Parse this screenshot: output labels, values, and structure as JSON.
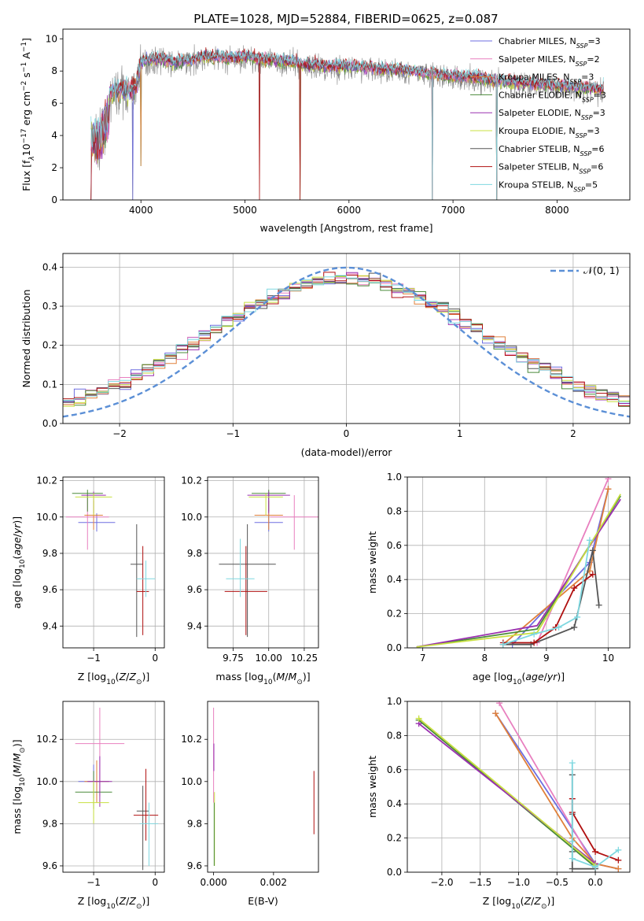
{
  "figure": {
    "title": "PLATE=1028, MJD=52884, FIBERID=0625, z=0.087"
  },
  "colors": {
    "chabrier_miles": "#6e6ee0",
    "salpeter_miles": "#e87fbf",
    "kroupa_miles": "#e0803a",
    "chabrier_elodie": "#4a8a3a",
    "salpeter_elodie": "#9a30b0",
    "kroupa_elodie": "#c8e040",
    "chabrier_stelib": "#555555",
    "salpeter_stelib": "#b01010",
    "kroupa_stelib": "#7fd8e0",
    "data": "#808080",
    "normal": "#5b8fd6",
    "grid": "#b0b0b0"
  },
  "legend_spectrum": [
    {
      "text": "Chabrier MILES, N",
      "sub": "SSP",
      "tail": "=3",
      "color_key": "chabrier_miles"
    },
    {
      "text": "Salpeter MILES, N",
      "sub": "SSP",
      "tail": "=2",
      "color_key": "salpeter_miles"
    },
    {
      "text": "Kroupa MILES, N",
      "sub": "SSP",
      "tail": "=3",
      "color_key": "kroupa_miles"
    },
    {
      "text": "Chabrier ELODIE, N",
      "sub": "SSP",
      "tail": "=3",
      "color_key": "chabrier_elodie"
    },
    {
      "text": "Salpeter ELODIE, N",
      "sub": "SSP",
      "tail": "=3",
      "color_key": "salpeter_elodie"
    },
    {
      "text": "Kroupa ELODIE, N",
      "sub": "SSP",
      "tail": "=3",
      "color_key": "kroupa_elodie"
    },
    {
      "text": "Chabrier STELIB, N",
      "sub": "SSP",
      "tail": "=6",
      "color_key": "chabrier_stelib"
    },
    {
      "text": "Salpeter STELIB, N",
      "sub": "SSP",
      "tail": "=6",
      "color_key": "salpeter_stelib"
    },
    {
      "text": "Kroupa STELIB, N",
      "sub": "SSP",
      "tail": "=5",
      "color_key": "kroupa_stelib"
    }
  ],
  "chart_data": [
    {
      "id": "spectrum",
      "type": "line",
      "xlabel": "wavelength [Angstrom, rest frame]",
      "ylabel": "Flux [fλ10⁻¹⁷ erg cm⁻² s⁻¹ A⁻¹]",
      "xlim": [
        3250,
        8700
      ],
      "ylim": [
        0,
        10.6
      ],
      "xticks": [
        4000,
        5000,
        6000,
        7000,
        8000
      ],
      "yticks": [
        0,
        2,
        4,
        6,
        8,
        10
      ],
      "grid": false,
      "legend": "right",
      "envelope": {
        "x": [
          3520,
          3600,
          3700,
          3800,
          3900,
          3950,
          4000,
          4100,
          4200,
          4300,
          4400,
          4500,
          4600,
          4800,
          5000,
          5200,
          5400,
          5600,
          5800,
          6000,
          6200,
          6400,
          6600,
          6800,
          7000,
          7200,
          7400,
          7600,
          7800,
          8000,
          8200,
          8450
        ],
        "y": [
          5.0,
          4.9,
          6.6,
          6.9,
          6.7,
          7.0,
          8.6,
          8.7,
          8.8,
          8.5,
          8.6,
          8.7,
          8.9,
          8.8,
          8.9,
          8.7,
          8.6,
          8.4,
          8.3,
          8.3,
          8.2,
          8.1,
          8.0,
          7.8,
          7.7,
          7.6,
          7.4,
          7.3,
          7.2,
          7.1,
          7.0,
          6.9
        ]
      },
      "deep_drops": [
        {
          "x": 3520,
          "y": 0.0
        },
        {
          "x": 3920,
          "y": 0.0
        },
        {
          "x": 4000,
          "y": 2.1
        },
        {
          "x": 5140,
          "y": 0.0
        },
        {
          "x": 5530,
          "y": 0.0
        },
        {
          "x": 6800,
          "y": 0.0
        },
        {
          "x": 7420,
          "y": 0.0
        }
      ]
    },
    {
      "id": "residuals",
      "type": "histogram",
      "xlabel": "(data-model)/error",
      "ylabel": "Normed distribution",
      "xlim": [
        -2.5,
        2.5
      ],
      "ylim": [
        0,
        0.435
      ],
      "xticks": [
        -2,
        -1,
        0,
        1,
        2
      ],
      "yticks": [
        0.0,
        0.1,
        0.2,
        0.3,
        0.4
      ],
      "grid": true,
      "legend_label": "𝒩(0, 1)",
      "legend": "top-right",
      "bin_width": 0.1
    },
    {
      "id": "age_vs_Z",
      "type": "errorbar",
      "xlabel": "Z [log₁₀(Z/Z⊙)]",
      "ylabel": "age  [log₁₀(age/yr)]",
      "xlim": [
        -1.5,
        0.15
      ],
      "ylim": [
        9.28,
        10.22
      ],
      "xticks": [
        -1,
        0
      ],
      "yticks": [
        9.4,
        9.6,
        9.8,
        10.0,
        10.2
      ],
      "grid": true,
      "points": [
        {
          "k": "chabrier_miles",
          "x": -0.95,
          "y": 9.97,
          "xe": [
            0.3,
            0.3
          ],
          "ye": [
            0.05,
            0.05
          ]
        },
        {
          "k": "salpeter_miles",
          "x": -1.1,
          "y": 10.0,
          "xe": [
            0.35,
            0.35
          ],
          "ye": [
            0.18,
            0.12
          ]
        },
        {
          "k": "kroupa_miles",
          "x": -1.0,
          "y": 10.01,
          "xe": [
            0.15,
            0.15
          ],
          "ye": [
            0.08,
            0.08
          ]
        },
        {
          "k": "chabrier_elodie",
          "x": -1.1,
          "y": 10.13,
          "xe": [
            0.25,
            0.25
          ],
          "ye": [
            0.1,
            0.02
          ]
        },
        {
          "k": "salpeter_elodie",
          "x": -1.0,
          "y": 10.12,
          "xe": [
            0.2,
            0.2
          ],
          "ye": [
            0.1,
            0.02
          ]
        },
        {
          "k": "kroupa_elodie",
          "x": -1.0,
          "y": 10.11,
          "xe": [
            0.3,
            0.3
          ],
          "ye": [
            0.1,
            0.02
          ]
        },
        {
          "k": "chabrier_stelib",
          "x": -0.3,
          "y": 9.74,
          "xe": [
            0.1,
            0.1
          ],
          "ye": [
            0.4,
            0.22
          ]
        },
        {
          "k": "salpeter_stelib",
          "x": -0.2,
          "y": 9.59,
          "xe": [
            0.1,
            0.1
          ],
          "ye": [
            0.24,
            0.25
          ]
        },
        {
          "k": "kroupa_stelib",
          "x": -0.15,
          "y": 9.66,
          "xe": [
            0.15,
            0.15
          ],
          "ye": [
            0.1,
            0.1
          ]
        }
      ]
    },
    {
      "id": "age_vs_mass",
      "type": "errorbar",
      "xlabel": "mass [log₁₀(M/M⊙)]",
      "ylabel": "",
      "xlim": [
        9.57,
        10.35
      ],
      "ylim": [
        9.28,
        10.22
      ],
      "xticks": [
        9.75,
        10.0,
        10.25
      ],
      "xticklabels": [
        "9.75",
        "10.00",
        "10.25"
      ],
      "yticks": [
        9.4,
        9.6,
        9.8,
        10.0,
        10.2
      ],
      "grid": true,
      "points": [
        {
          "k": "chabrier_miles",
          "x": 10.0,
          "y": 9.97,
          "xe": [
            0.1,
            0.1
          ],
          "ye": [
            0.05,
            0.05
          ]
        },
        {
          "k": "salpeter_miles",
          "x": 10.18,
          "y": 10.0,
          "xe": [
            0.17,
            0.17
          ],
          "ye": [
            0.18,
            0.12
          ]
        },
        {
          "k": "kroupa_miles",
          "x": 10.0,
          "y": 10.01,
          "xe": [
            0.1,
            0.1
          ],
          "ye": [
            0.08,
            0.08
          ]
        },
        {
          "k": "chabrier_elodie",
          "x": 10.0,
          "y": 10.13,
          "xe": [
            0.12,
            0.12
          ],
          "ye": [
            0.1,
            0.02
          ]
        },
        {
          "k": "salpeter_elodie",
          "x": 10.0,
          "y": 10.12,
          "xe": [
            0.15,
            0.15
          ],
          "ye": [
            0.1,
            0.02
          ]
        },
        {
          "k": "kroupa_elodie",
          "x": 9.98,
          "y": 10.11,
          "xe": [
            0.12,
            0.12
          ],
          "ye": [
            0.1,
            0.02
          ]
        },
        {
          "k": "chabrier_stelib",
          "x": 9.85,
          "y": 9.74,
          "xe": [
            0.2,
            0.2
          ],
          "ye": [
            0.4,
            0.22
          ]
        },
        {
          "k": "salpeter_stelib",
          "x": 9.84,
          "y": 9.59,
          "xe": [
            0.15,
            0.15
          ],
          "ye": [
            0.24,
            0.25
          ]
        },
        {
          "k": "kroupa_stelib",
          "x": 9.8,
          "y": 9.66,
          "xe": [
            0.1,
            0.1
          ],
          "ye": [
            0.1,
            0.22
          ]
        }
      ]
    },
    {
      "id": "weight_vs_age",
      "type": "line",
      "xlabel": "age  [log₁₀(age/yr)]",
      "ylabel": "mass weight",
      "xlim": [
        6.75,
        10.35
      ],
      "ylim": [
        0,
        1
      ],
      "xticks": [
        7,
        8,
        9,
        10
      ],
      "yticks": [
        0.0,
        0.2,
        0.4,
        0.6,
        0.8,
        1.0
      ],
      "grid": true,
      "series": [
        {
          "k": "chabrier_miles",
          "x": [
            8.45,
            9.7,
            10.0
          ],
          "y": [
            0.02,
            0.5,
            0.93
          ],
          "markers": true
        },
        {
          "k": "salpeter_miles",
          "x": [
            8.85,
            10.0
          ],
          "y": [
            0.03,
            0.99
          ],
          "markers": true
        },
        {
          "k": "kroupa_miles",
          "x": [
            8.3,
            9.7,
            10.0
          ],
          "y": [
            0.02,
            0.45,
            0.93
          ],
          "markers": true
        },
        {
          "k": "chabrier_elodie",
          "x": [
            6.9,
            8.85,
            10.2
          ],
          "y": [
            0.005,
            0.11,
            0.89
          ],
          "markers": false
        },
        {
          "k": "salpeter_elodie",
          "x": [
            6.9,
            8.85,
            10.2
          ],
          "y": [
            0.005,
            0.13,
            0.87
          ],
          "markers": false
        },
        {
          "k": "kroupa_elodie",
          "x": [
            6.9,
            8.85,
            10.2
          ],
          "y": [
            0.005,
            0.09,
            0.9
          ],
          "markers": false
        },
        {
          "k": "chabrier_stelib",
          "x": [
            8.3,
            8.75,
            9.45,
            9.75,
            9.85
          ],
          "y": [
            0.02,
            0.02,
            0.12,
            0.57,
            0.25
          ],
          "markers": true
        },
        {
          "k": "salpeter_stelib",
          "x": [
            8.3,
            8.8,
            9.15,
            9.45,
            9.75
          ],
          "y": [
            0.03,
            0.03,
            0.12,
            0.35,
            0.43
          ],
          "markers": true
        },
        {
          "k": "kroupa_stelib",
          "x": [
            8.3,
            8.8,
            9.2,
            9.5,
            9.7
          ],
          "y": [
            0.02,
            0.08,
            0.12,
            0.18,
            0.63
          ],
          "markers": true
        }
      ]
    },
    {
      "id": "mass_vs_Z",
      "type": "errorbar",
      "xlabel": "Z [log₁₀(Z/Z⊙)]",
      "ylabel": "mass [log₁₀(M/M⊙)]",
      "xlim": [
        -1.5,
        0.15
      ],
      "ylim": [
        9.57,
        10.38
      ],
      "xticks": [
        -1,
        0
      ],
      "yticks": [
        9.6,
        9.8,
        10.0,
        10.2
      ],
      "grid": true,
      "points": [
        {
          "k": "chabrier_miles",
          "x": -1.0,
          "y": 10.0,
          "xe": [
            0.25,
            0.25
          ],
          "ye": [
            0.08,
            0.08
          ]
        },
        {
          "k": "salpeter_miles",
          "x": -0.9,
          "y": 10.18,
          "xe": [
            0.4,
            0.4
          ],
          "ye": [
            0.25,
            0.17
          ]
        },
        {
          "k": "kroupa_miles",
          "x": -0.95,
          "y": 10.0,
          "xe": [
            0.2,
            0.2
          ],
          "ye": [
            0.1,
            0.1
          ]
        },
        {
          "k": "chabrier_elodie",
          "x": -1.0,
          "y": 9.95,
          "xe": [
            0.3,
            0.3
          ],
          "ye": [
            0.08,
            0.1
          ]
        },
        {
          "k": "salpeter_elodie",
          "x": -0.9,
          "y": 10.0,
          "xe": [
            0.2,
            0.2
          ],
          "ye": [
            0.12,
            0.12
          ]
        },
        {
          "k": "kroupa_elodie",
          "x": -1.0,
          "y": 9.9,
          "xe": [
            0.25,
            0.25
          ],
          "ye": [
            0.1,
            0.1
          ]
        },
        {
          "k": "chabrier_stelib",
          "x": -0.2,
          "y": 9.86,
          "xe": [
            0.1,
            0.1
          ],
          "ye": [
            0.28,
            0.12
          ]
        },
        {
          "k": "salpeter_stelib",
          "x": -0.15,
          "y": 9.84,
          "xe": [
            0.2,
            0.2
          ],
          "ye": [
            0.12,
            0.22
          ]
        },
        {
          "k": "kroupa_stelib",
          "x": -0.1,
          "y": 9.8,
          "xe": [
            0.15,
            0.15
          ],
          "ye": [
            0.2,
            0.1
          ]
        }
      ]
    },
    {
      "id": "mass_vs_ebv",
      "type": "errorbar",
      "xlabel": "E(B-V)",
      "ylabel": "",
      "xlim": [
        -0.0002,
        0.0035
      ],
      "ylim": [
        9.57,
        10.38
      ],
      "xticks": [
        0.0,
        0.002
      ],
      "xticklabels": [
        "0.000",
        "0.002"
      ],
      "yticks": [
        9.6,
        9.8,
        10.0,
        10.2
      ],
      "grid": false,
      "points": [
        {
          "k": "salpeter_miles",
          "x": 0.0,
          "y": 10.18,
          "xe": [
            0,
            0
          ],
          "ye": [
            0.28,
            0.17
          ]
        },
        {
          "k": "salpeter_elodie",
          "x": 1e-05,
          "y": 10.1,
          "xe": [
            0,
            0
          ],
          "ye": [
            0.05,
            0.08
          ]
        },
        {
          "k": "kroupa_elodie",
          "x": 3e-05,
          "y": 9.9,
          "xe": [
            0,
            0
          ],
          "ye": [
            0.3,
            0.05
          ]
        },
        {
          "k": "chabrier_elodie",
          "x": 2e-05,
          "y": 9.8,
          "xe": [
            0,
            0
          ],
          "ye": [
            0.2,
            0.1
          ]
        },
        {
          "k": "salpeter_stelib",
          "x": 0.00335,
          "y": 9.9,
          "xe": [
            0,
            0
          ],
          "ye": [
            0.15,
            0.15
          ]
        }
      ]
    },
    {
      "id": "weight_vs_Z",
      "type": "line",
      "xlabel": "Z [log₁₀(Z/Z⊙)]",
      "ylabel": "mass weight",
      "xlim": [
        -2.45,
        0.45
      ],
      "ylim": [
        0,
        1
      ],
      "xticks": [
        -2.0,
        -1.5,
        -1.0,
        -0.5,
        0.0
      ],
      "xticklabels": [
        "−2.0",
        "−1.5",
        "−1.0",
        "−0.5",
        "0.0"
      ],
      "yticks": [
        0.0,
        0.2,
        0.4,
        0.6,
        0.8,
        1.0
      ],
      "grid": true,
      "series": [
        {
          "k": "chabrier_miles",
          "x": [
            -1.3,
            0.0,
            0.3
          ],
          "y": [
            0.93,
            0.05,
            0.02
          ],
          "markers": true
        },
        {
          "k": "salpeter_miles",
          "x": [
            -1.25,
            0.0
          ],
          "y": [
            0.99,
            0.03
          ],
          "markers": true
        },
        {
          "k": "kroupa_miles",
          "x": [
            -1.3,
            -0.3,
            0.0,
            0.3
          ],
          "y": [
            0.93,
            0.2,
            0.05,
            0.02
          ],
          "markers": true
        },
        {
          "k": "chabrier_elodie",
          "x": [
            -2.3,
            0.0
          ],
          "y": [
            0.89,
            0.03
          ],
          "markers": true
        },
        {
          "k": "salpeter_elodie",
          "x": [
            -2.3,
            0.0
          ],
          "y": [
            0.87,
            0.05
          ],
          "markers": true
        },
        {
          "k": "kroupa_elodie",
          "x": [
            -2.3,
            0.0
          ],
          "y": [
            0.9,
            0.04
          ],
          "markers": true
        },
        {
          "k": "chabrier_stelib",
          "x": [
            -0.3,
            -0.3,
            -0.3,
            -0.3,
            0.0
          ],
          "y": [
            0.57,
            0.34,
            0.12,
            0.02,
            0.02
          ],
          "markers": true
        },
        {
          "k": "salpeter_stelib",
          "x": [
            -0.3,
            -0.3,
            0.0,
            0.3
          ],
          "y": [
            0.43,
            0.35,
            0.12,
            0.07
          ],
          "markers": true
        },
        {
          "k": "kroupa_stelib",
          "x": [
            -0.3,
            -0.3,
            -0.3,
            0.0,
            0.3
          ],
          "y": [
            0.64,
            0.18,
            0.08,
            0.03,
            0.13
          ],
          "markers": true
        }
      ]
    }
  ]
}
